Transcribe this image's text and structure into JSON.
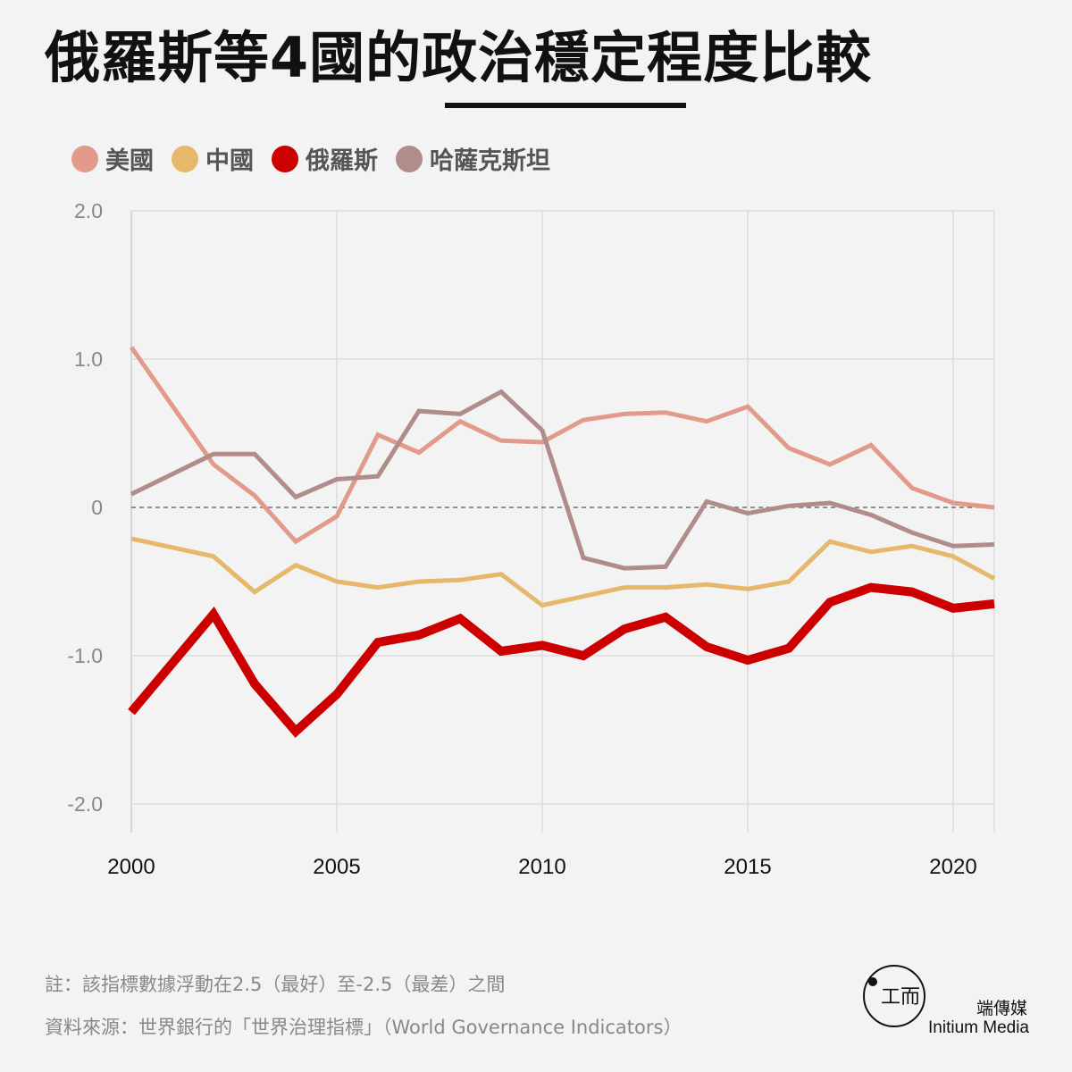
{
  "title": "俄羅斯等4國的政治穩定程度比較",
  "legend": [
    {
      "label": "美國",
      "color": "#e29a8a"
    },
    {
      "label": "中國",
      "color": "#e5b86b"
    },
    {
      "label": "俄羅斯",
      "color": "#cc0000"
    },
    {
      "label": "哈薩克斯坦",
      "color": "#b08c8a"
    }
  ],
  "chart_data": {
    "type": "line",
    "title": "俄羅斯等4國的政治穩定程度比較",
    "x": [
      2000,
      2002,
      2003,
      2004,
      2005,
      2006,
      2007,
      2008,
      2009,
      2010,
      2011,
      2012,
      2013,
      2014,
      2015,
      2016,
      2017,
      2018,
      2019,
      2020,
      2021
    ],
    "xlim": [
      2000,
      2021
    ],
    "ylim": [
      -2.2,
      2.0
    ],
    "x_ticks": [
      "2000",
      "2005",
      "2010",
      "2015",
      "2020"
    ],
    "y_ticks": [
      "2.0",
      "1.0",
      "0",
      "-1.0",
      "-2.0"
    ],
    "grid": true,
    "legend_position": "top-left",
    "series": [
      {
        "name": "美國",
        "color": "#e29a8a",
        "width": 5,
        "values": [
          1.08,
          0.29,
          0.08,
          -0.23,
          -0.06,
          0.49,
          0.37,
          0.58,
          0.45,
          0.44,
          0.59,
          0.63,
          0.64,
          0.58,
          0.68,
          0.4,
          0.29,
          0.42,
          0.13,
          0.03,
          0.0
        ]
      },
      {
        "name": "中國",
        "color": "#e5b86b",
        "width": 5,
        "values": [
          -0.21,
          -0.33,
          -0.57,
          -0.39,
          -0.5,
          -0.54,
          -0.5,
          -0.49,
          -0.45,
          -0.66,
          -0.6,
          -0.54,
          -0.54,
          -0.52,
          -0.55,
          -0.5,
          -0.23,
          -0.3,
          -0.26,
          -0.33,
          -0.48
        ]
      },
      {
        "name": "俄羅斯",
        "color": "#cc0000",
        "width": 10,
        "values": [
          -1.38,
          -0.72,
          -1.19,
          -1.51,
          -1.26,
          -0.91,
          -0.86,
          -0.75,
          -0.97,
          -0.93,
          -1.0,
          -0.82,
          -0.74,
          -0.94,
          -1.03,
          -0.95,
          -0.64,
          -0.54,
          -0.57,
          -0.68,
          -0.65
        ]
      },
      {
        "name": "哈薩克斯坦",
        "color": "#b08c8a",
        "width": 5,
        "values": [
          0.09,
          0.36,
          0.36,
          0.07,
          0.19,
          0.21,
          0.65,
          0.63,
          0.78,
          0.52,
          -0.34,
          -0.41,
          -0.4,
          0.04,
          -0.04,
          0.01,
          0.03,
          -0.05,
          -0.17,
          -0.26,
          -0.25
        ]
      }
    ]
  },
  "footer": {
    "note": "註：該指標數據浮動在2.5（最好）至-2.5（最差）之間",
    "source": "資料來源：世界銀行的「世界治理指標」（World Governance Indicators）"
  },
  "brand": {
    "name_cn": "端傳媒",
    "name_en": "Initium Media",
    "logo_glyph": "工而"
  }
}
